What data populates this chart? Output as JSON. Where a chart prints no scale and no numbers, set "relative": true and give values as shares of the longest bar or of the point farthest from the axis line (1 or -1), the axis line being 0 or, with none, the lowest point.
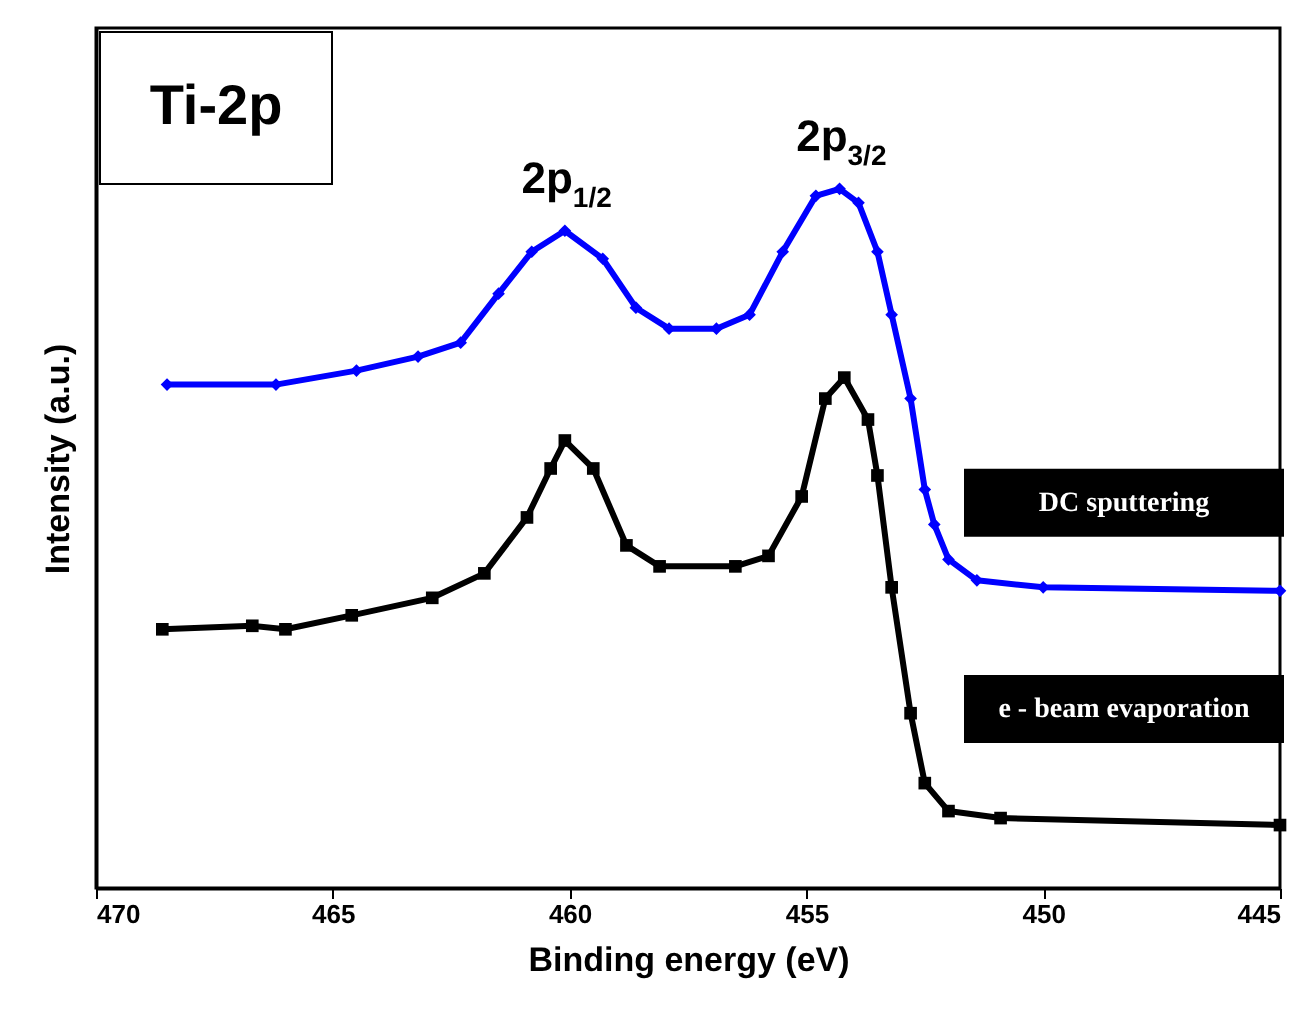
{
  "chart_data": {
    "type": "line",
    "title": "Ti-2p",
    "xlabel": "Binding energy (eV)",
    "ylabel": "Intensity (a.u.)",
    "relative": true,
    "xlim": [
      470,
      445
    ],
    "xticks": [
      470,
      465,
      460,
      455,
      450,
      445
    ],
    "grid": false,
    "line_style": "solid",
    "annotations": [
      {
        "text": "2p$_{1/2}$",
        "x": 460.1,
        "y": 0.94
      },
      {
        "text": "2p$_{3/2}$",
        "x": 454.3,
        "y": 1.0
      }
    ],
    "series": [
      {
        "name": "DC sputtering",
        "color": "#0000ff",
        "marker": "diamond",
        "x": [
          468.5,
          466.2,
          464.5,
          463.2,
          462.3,
          461.5,
          460.8,
          460.1,
          459.3,
          458.6,
          457.9,
          456.9,
          456.2,
          455.5,
          454.8,
          454.3,
          453.9,
          453.5,
          453.2,
          452.8,
          452.5,
          452.3,
          452.0,
          451.4,
          450.0,
          445.0
        ],
        "values": [
          0.72,
          0.72,
          0.74,
          0.76,
          0.78,
          0.85,
          0.91,
          0.94,
          0.9,
          0.83,
          0.8,
          0.8,
          0.82,
          0.91,
          0.99,
          1.0,
          0.98,
          0.91,
          0.82,
          0.7,
          0.57,
          0.52,
          0.47,
          0.44,
          0.43,
          0.425
        ]
      },
      {
        "name": "e - beam evaporation",
        "color": "#000000",
        "marker": "square",
        "x": [
          468.6,
          466.7,
          466.0,
          464.6,
          462.9,
          461.8,
          460.9,
          460.4,
          460.1,
          459.5,
          458.8,
          458.1,
          456.5,
          455.8,
          455.1,
          454.6,
          454.2,
          453.7,
          453.5,
          453.2,
          452.8,
          452.5,
          452.0,
          450.9,
          445.0
        ],
        "values": [
          0.37,
          0.375,
          0.37,
          0.39,
          0.415,
          0.45,
          0.53,
          0.6,
          0.64,
          0.6,
          0.49,
          0.46,
          0.46,
          0.475,
          0.56,
          0.7,
          0.73,
          0.67,
          0.59,
          0.43,
          0.25,
          0.15,
          0.11,
          0.1,
          0.09
        ]
      }
    ]
  }
}
